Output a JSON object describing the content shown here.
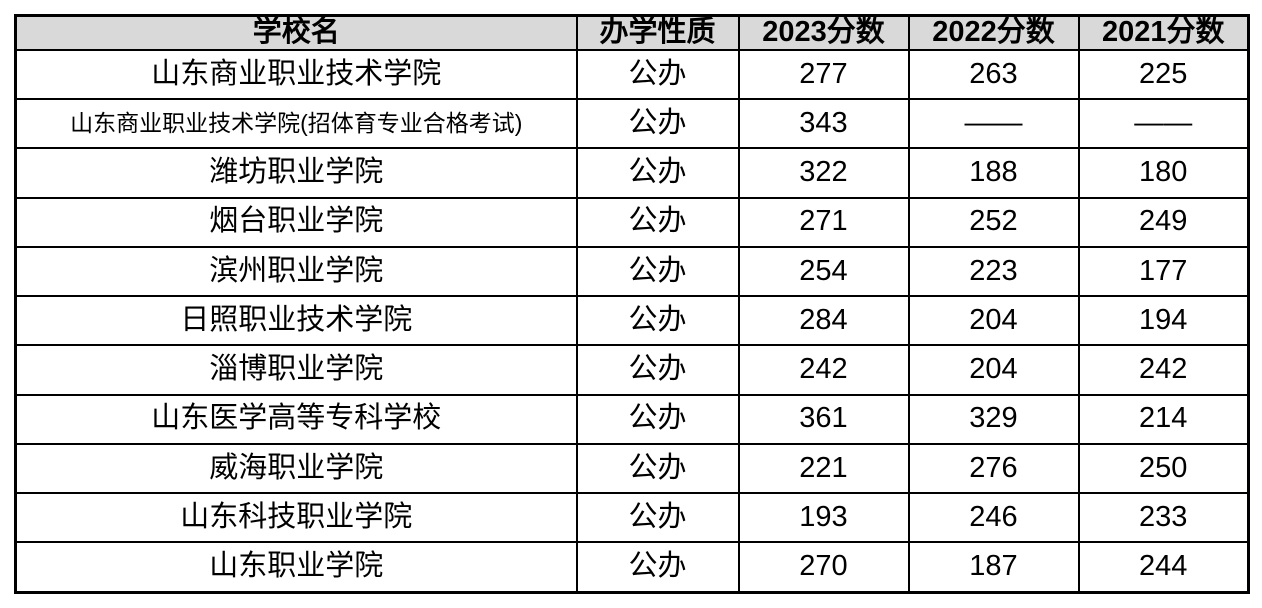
{
  "colors": {
    "header_bg": "#d9d9d9",
    "border": "#000000",
    "text": "#000000",
    "row_bg": "#ffffff"
  },
  "chart_data": {
    "type": "table",
    "title": "",
    "columns": [
      "学校名",
      "办学性质",
      "2023分数",
      "2022分数",
      "2021分数"
    ],
    "rows": [
      [
        "山东商业职业技术学院",
        "公办",
        "277",
        "263",
        "225"
      ],
      [
        "山东商业职业技术学院(招体育专业合格考试)",
        "公办",
        "343",
        "——",
        "——"
      ],
      [
        "潍坊职业学院",
        "公办",
        "322",
        "188",
        "180"
      ],
      [
        "烟台职业学院",
        "公办",
        "271",
        "252",
        "249"
      ],
      [
        "滨州职业学院",
        "公办",
        "254",
        "223",
        "177"
      ],
      [
        "日照职业技术学院",
        "公办",
        "284",
        "204",
        "194"
      ],
      [
        "淄博职业学院",
        "公办",
        "242",
        "204",
        "242"
      ],
      [
        "山东医学高等专科学校",
        "公办",
        "361",
        "329",
        "214"
      ],
      [
        "威海职业学院",
        "公办",
        "221",
        "276",
        "250"
      ],
      [
        "山东科技职业学院",
        "公办",
        "193",
        "246",
        "233"
      ],
      [
        "山东职业学院",
        "公办",
        "270",
        "187",
        "244"
      ]
    ]
  }
}
